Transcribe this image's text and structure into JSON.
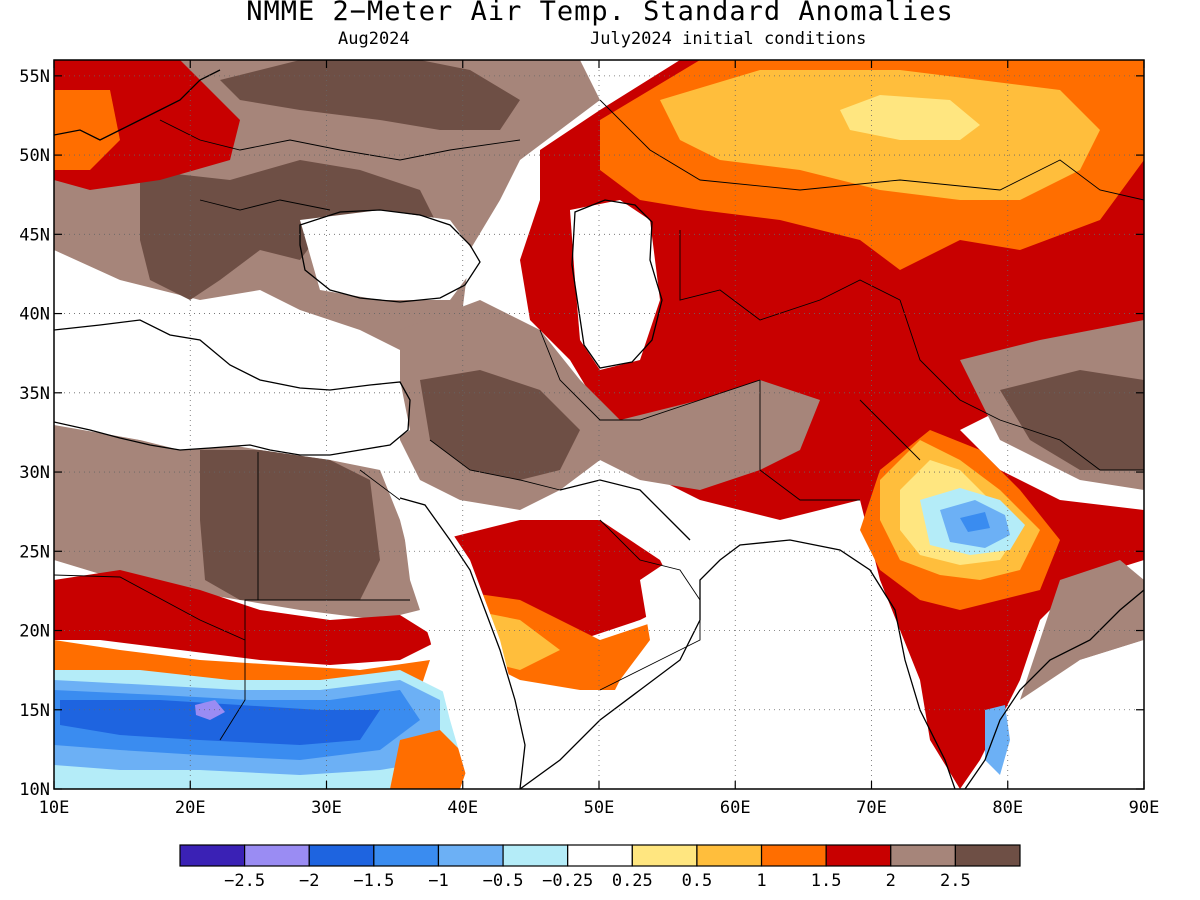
{
  "title": "NMME 2−Meter Air Temp. Standard Anomalies",
  "subtitle_left": "Aug2024",
  "subtitle_right": "July2024 initial conditions",
  "map": {
    "lon_range": [
      10,
      90
    ],
    "lat_range": [
      10,
      56
    ],
    "x_ticks": [
      "10E",
      "20E",
      "30E",
      "40E",
      "50E",
      "60E",
      "70E",
      "80E",
      "90E"
    ],
    "y_ticks": [
      "10N",
      "15N",
      "20N",
      "25N",
      "30N",
      "35N",
      "40N",
      "45N",
      "50N",
      "55N"
    ],
    "grid": "dotted"
  },
  "colorbar": {
    "colors": [
      "#3a21b5",
      "#9a8cf3",
      "#1e64e0",
      "#3a8cf0",
      "#6cb0f5",
      "#b4ecf8",
      "#ffffff",
      "#ffe680",
      "#ffbe3c",
      "#ff6e00",
      "#c80000",
      "#a6857a",
      "#6e4f45"
    ],
    "labels": [
      "−2.5",
      "−2",
      "−1.5",
      "−1",
      "−0.5",
      "−0.25",
      "0.25",
      "0.5",
      "1",
      "1.5",
      "2",
      "2.5"
    ]
  },
  "colors": {
    "land_white": "#ffffff",
    "brown_light": "#a6857a",
    "brown_dark": "#6e4f45",
    "red": "#c80000",
    "orange": "#ff6e00",
    "amber": "#ffbe3c",
    "yellow": "#ffe680",
    "cyan": "#b4ecf8",
    "blue_light": "#6cb0f5",
    "blue": "#3a8cf0",
    "blue_dark": "#1e64e0",
    "purple": "#9a8cf3"
  }
}
